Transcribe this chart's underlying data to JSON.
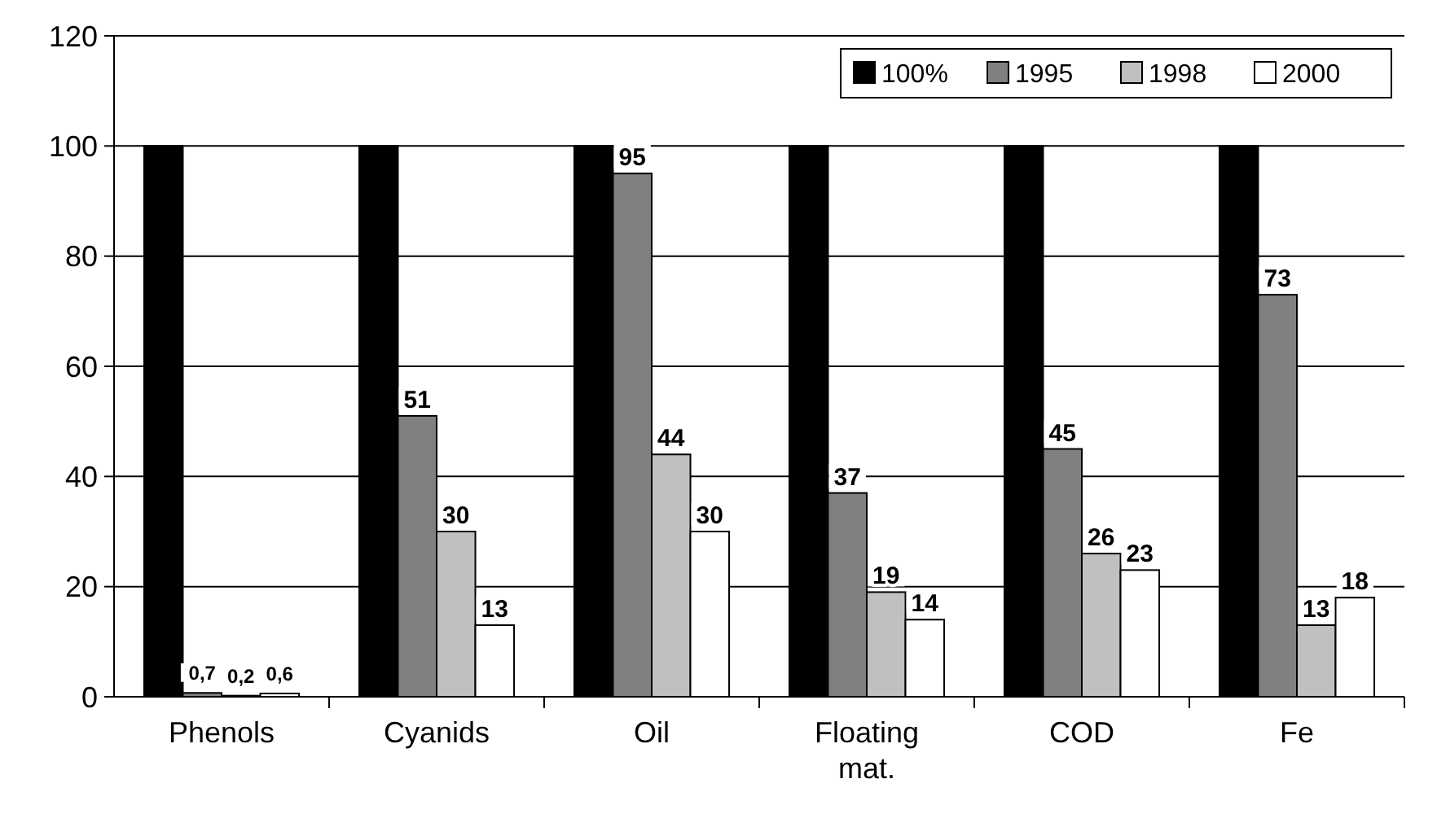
{
  "chart_data": {
    "type": "bar",
    "categories": [
      "Phenols",
      "Cyanids",
      "Oil",
      "Floating mat.",
      "COD",
      "Fe"
    ],
    "series": [
      {
        "name": "100%",
        "color": "#000000",
        "values": [
          100,
          100,
          100,
          100,
          100,
          100
        ]
      },
      {
        "name": "1995",
        "color": "#808080",
        "values": [
          0.7,
          51,
          95,
          37,
          45,
          73
        ],
        "value_labels": [
          "0,7",
          "51",
          "95",
          "37",
          "45",
          "73"
        ]
      },
      {
        "name": "1998",
        "color": "#c0c0c0",
        "values": [
          0.2,
          30,
          44,
          19,
          26,
          13
        ],
        "value_labels": [
          "0,2",
          "30",
          "44",
          "19",
          "26",
          "13"
        ]
      },
      {
        "name": "2000",
        "color": "#ffffff",
        "values": [
          0.6,
          13,
          30,
          14,
          23,
          18
        ],
        "value_labels": [
          "0,6",
          "13",
          "30",
          "14",
          "23",
          "18"
        ]
      }
    ],
    "ylim": [
      0,
      120
    ],
    "yticks": [
      0,
      20,
      40,
      60,
      80,
      100,
      120
    ],
    "grid": "y",
    "legend": "top right"
  }
}
